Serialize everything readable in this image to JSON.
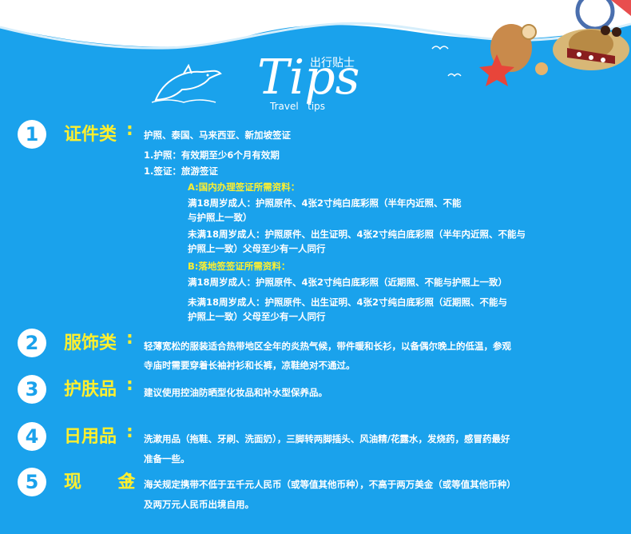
{
  "header": {
    "title_big": "Tips",
    "title_cn": "出行贴士",
    "title_en": "Travel   tips"
  },
  "colors": {
    "background": "#1aa2ec",
    "accent": "#ffef2e",
    "text": "#ffffff"
  },
  "sections": [
    {
      "number": "1",
      "category": "证件类",
      "colon": ":",
      "headline": "护照、泰国、马来西亚、新加坡签证",
      "lines": [
        "1.护照：有效期至少6个月有效期",
        "1.签证：旅游签证",
        "A:国内办理签证所需资料：",
        "满18周岁成人：护照原件、4张2寸纯白底彩照（半年内近照、不能",
        "与护照上一致）",
        "未满18周岁成人：护照原件、出生证明、4张2寸纯白底彩照（半年内近照、不能与",
        "护照上一致）父母至少有一人同行",
        "B:落地签签证所需资料：",
        "满18周岁成人：护照原件、4张2寸纯白底彩照（近期照、不能与护照上一致）",
        "未满18周岁成人：护照原件、出生证明、4张2寸纯白底彩照（近期照、不能与",
        "护照上一致）父母至少有一人同行"
      ]
    },
    {
      "number": "2",
      "category": "服饰类",
      "colon": ":",
      "lines": [
        "轻薄宽松的服装适合热带地区全年的炎热气候，带件暖和长衫，以备偶尔晚上的低温，参观",
        "寺庙时需要穿着长袖衬衫和长裤，凉鞋绝对不通过。"
      ]
    },
    {
      "number": "3",
      "category": "护肤品",
      "colon": ":",
      "lines": [
        "建议使用控油防晒型化妆品和补水型保养品。"
      ]
    },
    {
      "number": "4",
      "category": "日用品",
      "colon": ":",
      "lines": [
        "洗漱用品（拖鞋、牙刷、洗面奶），三脚转两脚插头、风油精/花露水，发烧药，感冒药最好",
        "准备一些。"
      ]
    },
    {
      "number": "5",
      "category": "现金",
      "category_display": "现  金",
      "colon": ":",
      "lines": [
        "海关规定携带不低于五千元人民币（或等值其他币种），不高于两万美金（或等值其他币种）",
        "及两万元人民币出境自用。"
      ]
    }
  ]
}
